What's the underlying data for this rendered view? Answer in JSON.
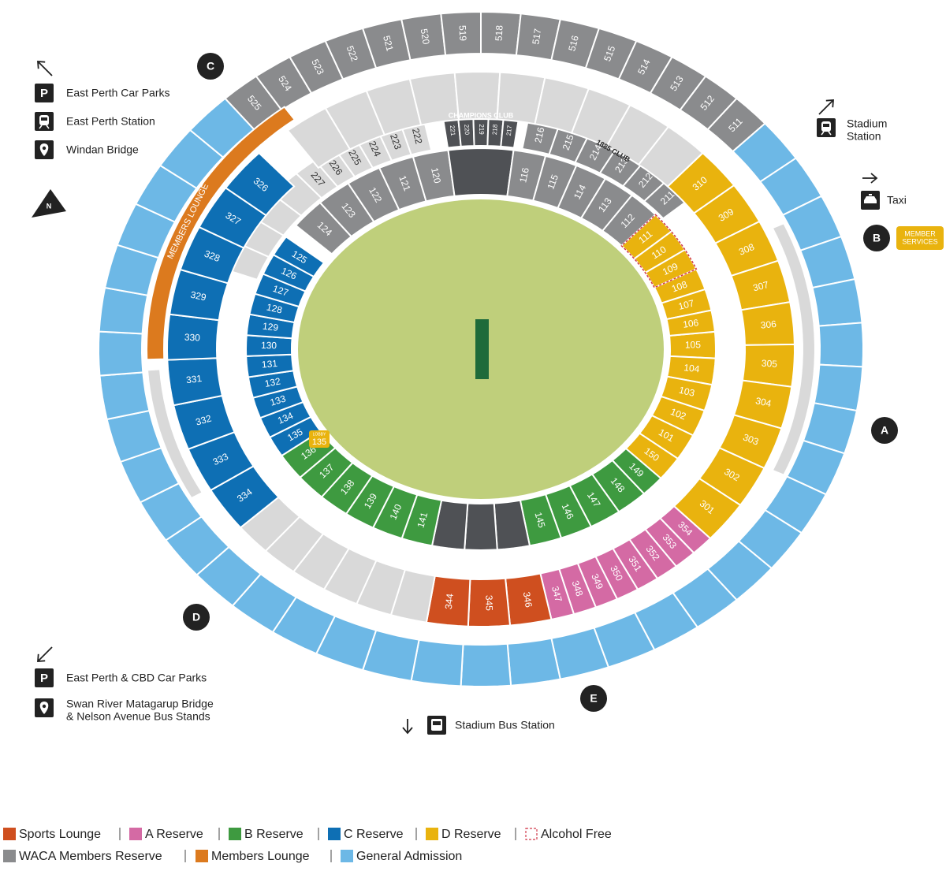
{
  "map": {
    "compass": "N",
    "markers": [
      "A",
      "B",
      "C",
      "D",
      "E"
    ],
    "member_services": [
      "MEMBER",
      "SERVICES"
    ],
    "lobby": [
      "LOBBY",
      "135"
    ],
    "members_lounge": "MEMBERS LOUNGE",
    "champions_club": "CHAMPIONS CLUB",
    "club_1885": "1885 CLUB",
    "rings": [
      {
        "sections": [
          "105",
          "104",
          "103",
          "102",
          "101",
          "150",
          "149",
          "148",
          "147",
          "146",
          "145",
          "141",
          "140",
          "139",
          "138",
          "137",
          "136",
          "135",
          "134",
          "133",
          "132",
          "131",
          "130",
          "129",
          "128",
          "127",
          "126",
          "125",
          "124",
          "123",
          "122",
          "121",
          "120",
          "116",
          "115",
          "114",
          "113",
          "112",
          "111",
          "110",
          "109",
          "108",
          "107",
          "106"
        ]
      },
      {
        "sections": [
          "227",
          "226",
          "225",
          "224",
          "223",
          "222",
          "221",
          "220",
          "219",
          "218",
          "217",
          "216",
          "215",
          "214",
          "213",
          "212",
          "211"
        ]
      },
      {
        "sections": [
          "310",
          "309",
          "308",
          "307",
          "306",
          "305",
          "304",
          "303",
          "302",
          "301",
          "354",
          "353",
          "352",
          "351",
          "350",
          "349",
          "348",
          "347",
          "346",
          "345",
          "344",
          "334",
          "333",
          "332",
          "331",
          "330",
          "329",
          "328",
          "327",
          "326"
        ]
      },
      {
        "sections": [
          "525",
          "524",
          "523",
          "522",
          "521",
          "520",
          "519",
          "518",
          "517",
          "516",
          "515",
          "514",
          "513",
          "512",
          "511"
        ]
      }
    ]
  },
  "directions": [
    {
      "icon_text": "P",
      "lines": [
        "East Perth Car Parks"
      ]
    },
    {
      "lines": [
        "East Perth Station"
      ]
    },
    {
      "lines": [
        "Windan Bridge"
      ]
    },
    {
      "lines": [
        "Stadium",
        "Station"
      ]
    },
    {
      "lines": [
        "Taxi"
      ]
    },
    {
      "icon_text": "P",
      "lines": [
        "East Perth & CBD Car Parks"
      ]
    },
    {
      "lines": [
        "Swan River Matagarup Bridge",
        "& Nelson Avenue Bus Stands"
      ]
    },
    {
      "lines": [
        "Stadium Bus Station"
      ]
    }
  ],
  "legend": [
    {
      "label": "Sports Lounge",
      "color": "#cf4f1f"
    },
    {
      "label": "A Reserve",
      "color": "#d46aa4"
    },
    {
      "label": "B Reserve",
      "color": "#3e9a40"
    },
    {
      "label": "C Reserve",
      "color": "#0e6fb4"
    },
    {
      "label": "D Reserve",
      "color": "#e9b30e"
    },
    {
      "label": "Alcohol Free",
      "color": "#d0394a"
    },
    {
      "label": "WACA Members Reserve",
      "color": "#8a8b8d"
    },
    {
      "label": "Members Lounge",
      "color": "#dc7a1e"
    },
    {
      "label": "General Admission",
      "color": "#6db8e6"
    }
  ]
}
